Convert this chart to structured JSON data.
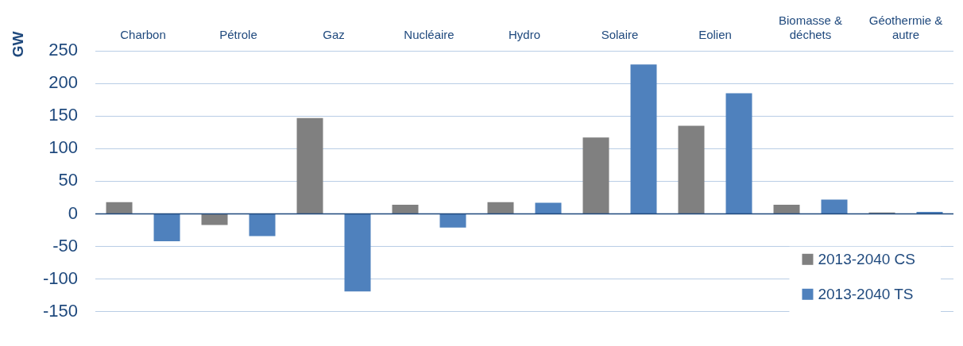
{
  "chart_data": {
    "type": "bar",
    "ylabel": "GW",
    "categories": [
      "Charbon",
      "Pétrole",
      "Gaz",
      "Nucléaire",
      "Hydro",
      "Solaire",
      "Eolien",
      "Biomasse & déchets",
      "Géothermie & autre"
    ],
    "series": [
      {
        "name": "2013-2040 CS",
        "color": "#808080",
        "values": [
          18,
          -17,
          147,
          14,
          18,
          117,
          135,
          14,
          2
        ]
      },
      {
        "name": "2013-2040 TS",
        "color": "#4f81bd",
        "values": [
          -42,
          -34,
          -119,
          -21,
          17,
          229,
          185,
          22,
          3
        ]
      }
    ],
    "ref_lines": [
      {
        "axis": "y",
        "value": 0,
        "color": "#1f497d"
      }
    ],
    "ylim": [
      -150,
      250
    ],
    "yticks": [
      -150,
      -100,
      -50,
      0,
      50,
      100,
      150,
      200,
      250
    ],
    "grid": "y",
    "legend": "bottom right"
  }
}
